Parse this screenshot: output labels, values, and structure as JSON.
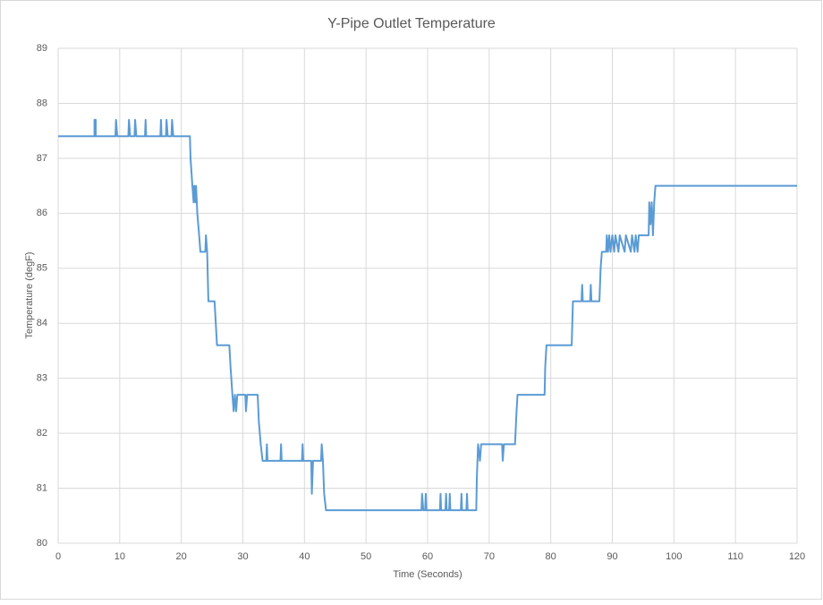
{
  "chart_data": {
    "type": "line",
    "title": "Y-Pipe Outlet Temperature",
    "x_label": "Time (Seconds)",
    "y_label": "Temperature (degF)",
    "xlim": [
      0,
      120
    ],
    "xticks": [
      0,
      10,
      20,
      30,
      40,
      50,
      60,
      70,
      80,
      90,
      100,
      110,
      120
    ],
    "ylim": [
      80,
      89
    ],
    "yticks": [
      80,
      81,
      82,
      83,
      84,
      85,
      86,
      87,
      88,
      89
    ],
    "grid": true,
    "series": [
      {
        "color": "#5b9bd5",
        "x": [
          0,
          5.9,
          5.9,
          6.1,
          6.1,
          9.3,
          9.4,
          9.6,
          11.4,
          11.5,
          11.7,
          12.4,
          12.5,
          12.7,
          14.1,
          14.2,
          14.3,
          16.6,
          16.7,
          16.8,
          17.5,
          17.6,
          17.8,
          18.4,
          18.5,
          18.7,
          21.4,
          21.5,
          21.8,
          22.0,
          22.1,
          22.3,
          22.4,
          22.6,
          22.9,
          23.1,
          23.9,
          24.0,
          24.2,
          24.4,
          25.4,
          25.6,
          25.8,
          27.8,
          28.0,
          28.3,
          28.5,
          28.7,
          28.9,
          29.1,
          30.4,
          30.5,
          30.7,
          32.4,
          32.6,
          32.9,
          33.2,
          33.8,
          33.9,
          34.0,
          36.1,
          36.2,
          36.3,
          39.6,
          39.7,
          39.8,
          41.1,
          41.2,
          41.4,
          42.7,
          42.8,
          43.0,
          43.2,
          43.5,
          59.0,
          59.1,
          59.3,
          59.6,
          59.7,
          59.8,
          62.0,
          62.1,
          62.2,
          62.9,
          63.0,
          63.1,
          63.5,
          63.6,
          63.7,
          65.4,
          65.5,
          65.6,
          66.3,
          66.4,
          66.5,
          67.9,
          68.0,
          68.2,
          68.5,
          68.7,
          72.1,
          72.2,
          72.4,
          74.2,
          74.4,
          74.6,
          79.0,
          79.1,
          79.3,
          83.4,
          83.6,
          85.0,
          85.1,
          85.2,
          86.4,
          86.5,
          86.6,
          87.9,
          88.1,
          88.3,
          89.0,
          89.1,
          89.3,
          89.5,
          89.7,
          90.0,
          90.3,
          90.5,
          91.0,
          91.2,
          92.0,
          92.2,
          93.0,
          93.2,
          93.6,
          93.8,
          94.1,
          94.3,
          95.9,
          96.0,
          96.2,
          96.4,
          96.6,
          96.8,
          97.0,
          120
        ],
        "values": [
          87.4,
          87.4,
          87.7,
          87.7,
          87.4,
          87.4,
          87.7,
          87.4,
          87.4,
          87.7,
          87.4,
          87.4,
          87.7,
          87.4,
          87.4,
          87.7,
          87.4,
          87.4,
          87.7,
          87.4,
          87.4,
          87.7,
          87.4,
          87.4,
          87.7,
          87.4,
          87.4,
          87.0,
          86.5,
          86.2,
          86.5,
          86.2,
          86.5,
          86.0,
          85.6,
          85.3,
          85.3,
          85.6,
          85.3,
          84.4,
          84.4,
          84.0,
          83.6,
          83.6,
          83.2,
          82.7,
          82.4,
          82.7,
          82.4,
          82.7,
          82.7,
          82.4,
          82.7,
          82.7,
          82.2,
          81.8,
          81.5,
          81.5,
          81.8,
          81.5,
          81.5,
          81.8,
          81.5,
          81.5,
          81.8,
          81.5,
          81.5,
          80.9,
          81.5,
          81.5,
          81.8,
          81.5,
          80.9,
          80.6,
          80.6,
          80.9,
          80.6,
          80.6,
          80.9,
          80.6,
          80.6,
          80.9,
          80.6,
          80.6,
          80.9,
          80.6,
          80.6,
          80.9,
          80.6,
          80.6,
          80.9,
          80.6,
          80.6,
          80.9,
          80.6,
          80.6,
          81.2,
          81.8,
          81.5,
          81.8,
          81.8,
          81.5,
          81.8,
          81.8,
          82.3,
          82.7,
          82.7,
          83.2,
          83.6,
          83.6,
          84.4,
          84.4,
          84.7,
          84.4,
          84.4,
          84.7,
          84.4,
          84.4,
          85.0,
          85.3,
          85.3,
          85.6,
          85.3,
          85.6,
          85.3,
          85.6,
          85.3,
          85.6,
          85.3,
          85.6,
          85.3,
          85.6,
          85.3,
          85.6,
          85.3,
          85.6,
          85.3,
          85.6,
          85.6,
          86.2,
          85.8,
          86.2,
          85.6,
          86.2,
          86.5,
          86.5
        ]
      }
    ]
  }
}
